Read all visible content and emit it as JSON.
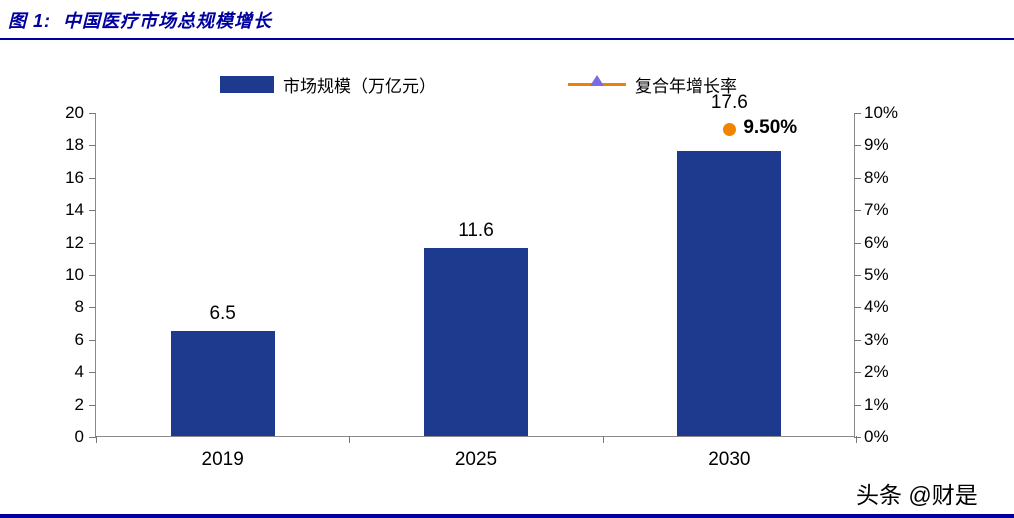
{
  "header": {
    "title": "图 1:  中国医疗市场总规模增长"
  },
  "footer": {
    "watermark": "头条 @财是"
  },
  "colors": {
    "accent_blue": "#0000a0",
    "bar_blue": "#1d3a8f",
    "line_orange": "#e8820c",
    "point_orange": "#f08300",
    "marker_purple": "#7a6be0"
  },
  "chart_data": {
    "type": "bar",
    "title": "中国医疗市场总规模增长",
    "categories": [
      "2019",
      "2025",
      "2030"
    ],
    "series": [
      {
        "name": "市场规模（万亿元）",
        "type": "bar",
        "axis": "left",
        "values": [
          6.5,
          11.6,
          17.6
        ]
      },
      {
        "name": "复合年增长率",
        "type": "point",
        "axis": "right",
        "values": [
          null,
          null,
          9.5
        ],
        "labels": [
          null,
          null,
          "9.50%"
        ]
      }
    ],
    "bar_labels": [
      "6.5",
      "11.6",
      "17.6"
    ],
    "left_axis": {
      "min": 0,
      "max": 20,
      "step": 2,
      "ticks": [
        "0",
        "2",
        "4",
        "6",
        "8",
        "10",
        "12",
        "14",
        "16",
        "18",
        "20"
      ]
    },
    "right_axis": {
      "min": 0,
      "max": 10,
      "step": 1,
      "ticks": [
        "0%",
        "1%",
        "2%",
        "3%",
        "4%",
        "5%",
        "6%",
        "7%",
        "8%",
        "9%",
        "10%"
      ]
    },
    "grid": false,
    "legend_position": "top"
  }
}
